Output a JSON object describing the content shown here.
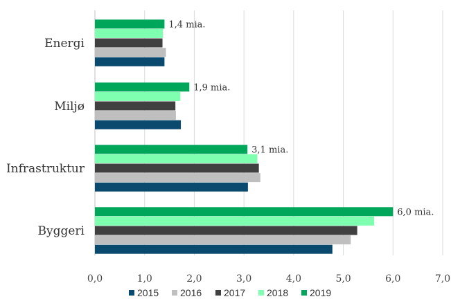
{
  "chart_data": {
    "type": "bar",
    "orientation": "horizontal",
    "categories": [
      "Energi",
      "Miljø",
      "Infrastruktur",
      "Byggeri"
    ],
    "series": [
      {
        "name": "2015",
        "color": "#0B4A6F",
        "values": [
          1.4,
          1.73,
          3.08,
          4.78
        ]
      },
      {
        "name": "2016",
        "color": "#BFBFBF",
        "values": [
          1.43,
          1.63,
          3.33,
          5.15
        ]
      },
      {
        "name": "2017",
        "color": "#404040",
        "values": [
          1.36,
          1.62,
          3.3,
          5.28
        ]
      },
      {
        "name": "2018",
        "color": "#7FFFB0",
        "values": [
          1.37,
          1.72,
          3.27,
          5.62
        ]
      },
      {
        "name": "2019",
        "color": "#00A65A",
        "values": [
          1.4,
          1.9,
          3.07,
          6.0
        ]
      }
    ],
    "data_labels": [
      "1,4 mia.",
      "1,9 mia.",
      "3,1 mia.",
      "6,0 mia."
    ],
    "xticks": [
      "0,0",
      "1,0",
      "2,0",
      "3,0",
      "4,0",
      "5,0",
      "6,0",
      "7,0"
    ],
    "xlim": [
      0,
      7
    ],
    "grid": true,
    "legend_position": "bottom",
    "title": "",
    "xlabel": "",
    "ylabel": ""
  }
}
